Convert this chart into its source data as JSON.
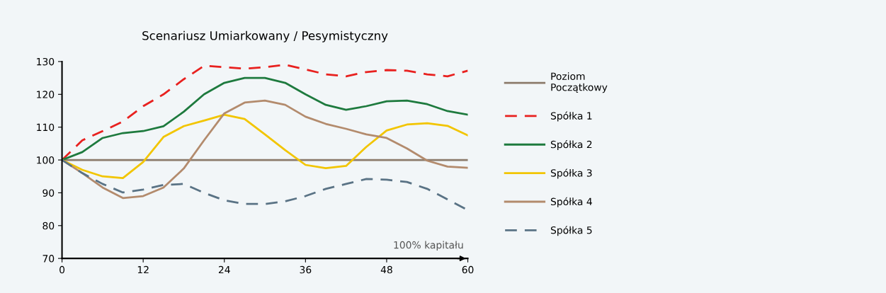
{
  "chart_data": {
    "type": "line",
    "title": "Scenariusz Umiarkowany / Pesymistyczny",
    "x": [
      0,
      3,
      6,
      9,
      12,
      15,
      18,
      21,
      24,
      27,
      30,
      33,
      36,
      39,
      42,
      45,
      48,
      51,
      54,
      57,
      60
    ],
    "series": [
      {
        "name": "Poziom\nPoczątkowy",
        "color": "#8c7b6b",
        "line_style": "solid",
        "x": [
          0,
          60
        ],
        "values": [
          100,
          100
        ]
      },
      {
        "name": "Spółka 1",
        "color": "#e8211f",
        "line_style": "dashed",
        "values": [
          100,
          106,
          108.8,
          111.7,
          116.4,
          120,
          124.6,
          128.7,
          128.3,
          127.8,
          128.3,
          129,
          127.6,
          126.1,
          125.5,
          126.8,
          127.4,
          127.2,
          126.1,
          125.5,
          127.2
        ]
      },
      {
        "name": "Spółka 2",
        "color": "#1e7a3e",
        "line_style": "solid",
        "values": [
          100,
          102.4,
          106.7,
          108.2,
          108.8,
          110.3,
          114.7,
          120,
          123.5,
          125,
          125,
          123.5,
          120,
          116.8,
          115.3,
          116.4,
          117.9,
          118.1,
          117,
          114.9,
          113.8
        ]
      },
      {
        "name": "Spółka 3",
        "color": "#f2c500",
        "line_style": "solid",
        "values": [
          100,
          97,
          95,
          94.5,
          99.4,
          107,
          110.3,
          112,
          113.8,
          112.5,
          107.8,
          103,
          98.5,
          97.5,
          98.2,
          104,
          109,
          110.8,
          111.2,
          110.4,
          107.5
        ]
      },
      {
        "name": "Spółka 4",
        "color": "#b38b6d",
        "line_style": "solid",
        "values": [
          100,
          96,
          91.6,
          88.4,
          89,
          91.6,
          97.4,
          106,
          114.2,
          117.5,
          118.1,
          116.8,
          113.2,
          111,
          109.5,
          107.8,
          106.7,
          103.5,
          99.8,
          98,
          97.6
        ]
      },
      {
        "name": "Spółka 5",
        "color": "#5a7385",
        "line_style": "dashed",
        "values": [
          100,
          96,
          92.7,
          90.1,
          91,
          92.4,
          92.7,
          90,
          87.7,
          86.6,
          86.6,
          87.4,
          89,
          91.2,
          92.7,
          94.2,
          94,
          93.3,
          91.2,
          88,
          84.7
        ]
      }
    ],
    "xlim": [
      0,
      60
    ],
    "xticks": [
      0,
      12,
      24,
      36,
      48,
      60
    ],
    "ylim": [
      70,
      130
    ],
    "yticks": [
      70,
      80,
      90,
      100,
      110,
      120,
      130
    ],
    "annotations": [
      "100% kapitału"
    ],
    "grid": false,
    "legend": "right",
    "marker": "none"
  }
}
